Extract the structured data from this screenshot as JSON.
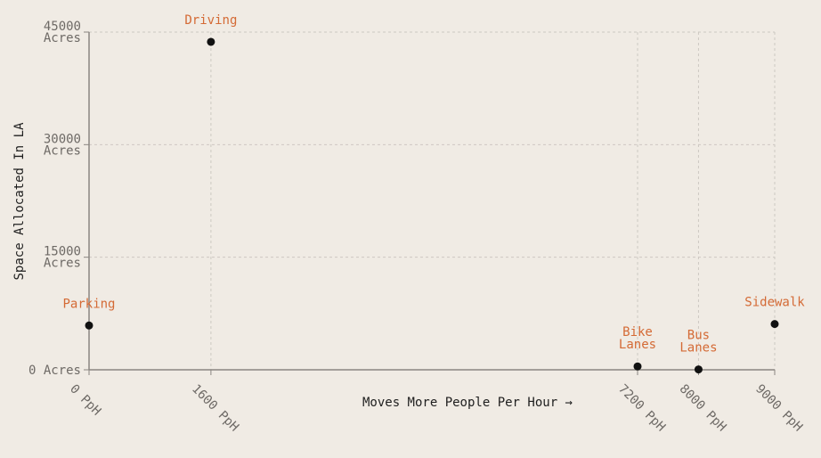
{
  "chart_data": {
    "type": "scatter",
    "xlabel": "Moves More People Per Hour →",
    "ylabel": "Space Allocated In LA",
    "x_ticks": [
      {
        "value": 0,
        "label": "0 PpH"
      },
      {
        "value": 1600,
        "label": "1600 PpH"
      },
      {
        "value": 7200,
        "label": "7200 PpH"
      },
      {
        "value": 8000,
        "label": "8000 PpH"
      },
      {
        "value": 9000,
        "label": "9000 PpH"
      }
    ],
    "y_ticks": [
      {
        "value": 0,
        "label": "0 Acres"
      },
      {
        "value": 15000,
        "label": "15000 Acres"
      },
      {
        "value": 30000,
        "label": "30000 Acres"
      },
      {
        "value": 45000,
        "label": "45000 Acres"
      }
    ],
    "xlim": [
      0,
      9000
    ],
    "ylim": [
      0,
      45000
    ],
    "grid": true,
    "points": [
      {
        "label": "Parking",
        "x": 0,
        "y": 5900
      },
      {
        "label": "Driving",
        "x": 1600,
        "y": 43700
      },
      {
        "label": "Bike Lanes",
        "x": 7200,
        "y": 450
      },
      {
        "label": "Bus Lanes",
        "x": 8000,
        "y": 50
      },
      {
        "label": "Sidewalk",
        "x": 9000,
        "y": 6100
      }
    ],
    "colors": {
      "background": "#f0ebe4",
      "axis": "#8a8681",
      "grid": "#cdc8c2",
      "tick_text": "#6e6a66",
      "point": "#111111",
      "point_label": "#d46a35",
      "axis_title": "#1e1e1e"
    }
  }
}
